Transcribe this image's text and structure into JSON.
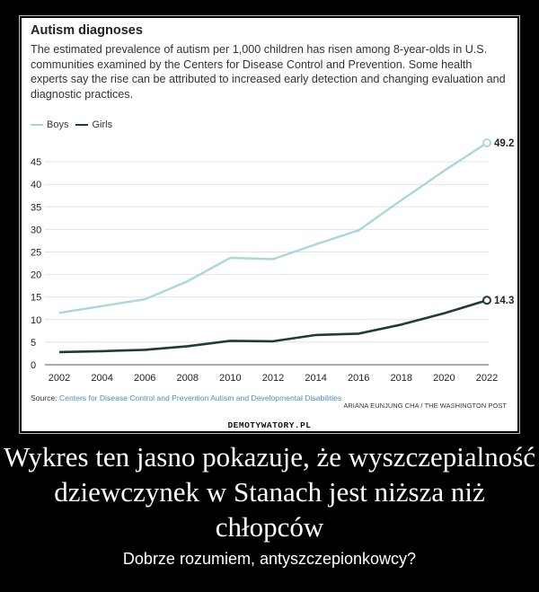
{
  "chart_data": {
    "type": "line",
    "title": "Autism diagnoses",
    "subtitle": "The estimated prevalence of autism per 1,000 children has risen among 8-year-olds in U.S. communities examined by the Centers for Disease Control and Prevention. Some health experts say the rise can be attributed to increased early detection and changing evaluation and diagnostic practices.",
    "x": [
      2002,
      2004,
      2006,
      2008,
      2010,
      2012,
      2014,
      2016,
      2018,
      2020,
      2022
    ],
    "x_ticks": [
      "2002",
      "2004",
      "2006",
      "2008",
      "2010",
      "2012",
      "2014",
      "2016",
      "2018",
      "2020",
      "2022"
    ],
    "y_ticks": [
      "0",
      "5",
      "10",
      "15",
      "20",
      "25",
      "30",
      "35",
      "40",
      "45"
    ],
    "xlim": [
      2002,
      2022
    ],
    "ylim": [
      0,
      50
    ],
    "grid": true,
    "legend_position": "top-left",
    "series": [
      {
        "name": "Boys",
        "color": "#a8d8dc",
        "values": [
          11.5,
          13,
          14.5,
          18.5,
          23.7,
          23.4,
          26.7,
          29.8,
          36.5,
          43,
          49.2
        ],
        "end_label": "49.2"
      },
      {
        "name": "Girls",
        "color": "#1f3a3a",
        "values": [
          2.8,
          3,
          3.3,
          4.1,
          5.3,
          5.2,
          6.6,
          6.9,
          8.9,
          11.4,
          14.3
        ],
        "end_label": "14.3"
      }
    ],
    "source_label": "Source:",
    "source_text": "Centers for Disease Control and Prevention Autism and Developmental Disabilities",
    "credit": "ARIANA EUNJUNG CHA / THE WASHINGTON POST"
  },
  "watermark": "DEMOTYWATORY.PL",
  "caption": {
    "title": "Wykres ten jasno pokazuje, że wyszczepialność dziewczynek w Stanach jest niższa niż chłopców",
    "subtitle": "Dobrze rozumiem, antyszczepionkowcy?"
  }
}
